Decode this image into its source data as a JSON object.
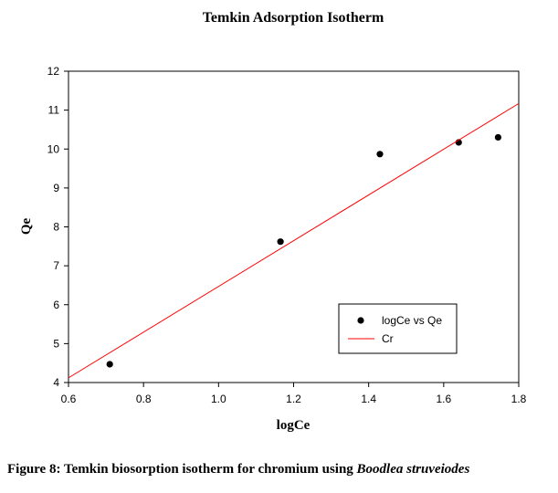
{
  "chart_data": {
    "type": "scatter",
    "title": "Temkin Adsorption Isotherm",
    "xlabel": "logCe",
    "ylabel": "Qe",
    "xlim": [
      0.6,
      1.8
    ],
    "ylim": [
      4,
      12
    ],
    "xticks": [
      "0.6",
      "0.8",
      "1.0",
      "1.2",
      "1.4",
      "1.6",
      "1.8"
    ],
    "yticks": [
      "4",
      "5",
      "6",
      "7",
      "8",
      "9",
      "10",
      "11",
      "12"
    ],
    "grid": false,
    "legend_position": "bottom-right",
    "series": [
      {
        "name": "logCe vs Qe",
        "kind": "scatter",
        "color": "#000000",
        "x": [
          0.71,
          1.165,
          1.43,
          1.64,
          1.745
        ],
        "y": [
          4.47,
          7.62,
          9.87,
          10.17,
          10.3
        ]
      },
      {
        "name": "Cr",
        "kind": "line",
        "color": "#ff0000",
        "x": [
          0.6,
          1.8
        ],
        "y": [
          4.12,
          11.17
        ]
      }
    ]
  },
  "caption": {
    "prefix": "Figure 8: Temkin biosorption isotherm for chromium using ",
    "species": "Boodlea struveiodes"
  }
}
